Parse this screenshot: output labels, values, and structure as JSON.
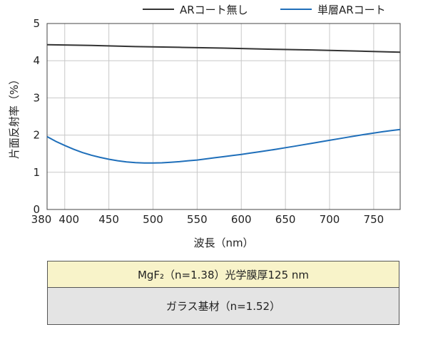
{
  "chart_data": {
    "type": "line",
    "xlabel": "波長（nm）",
    "ylabel": "片面反射率（%）",
    "xlim": [
      380,
      780
    ],
    "ylim": [
      0,
      5
    ],
    "x_ticks": [
      {
        "value": 380,
        "label": "380"
      },
      {
        "value": 400,
        "label": "400"
      },
      {
        "value": 450,
        "label": "450"
      },
      {
        "value": 500,
        "label": "500"
      },
      {
        "value": 550,
        "label": "550"
      },
      {
        "value": 600,
        "label": "600"
      },
      {
        "value": 650,
        "label": "650"
      },
      {
        "value": 700,
        "label": "700"
      },
      {
        "value": 750,
        "label": "750"
      }
    ],
    "y_ticks": [
      0,
      1,
      2,
      3,
      4,
      5
    ],
    "grid": true,
    "legend_position": "top",
    "series": [
      {
        "name": "ARコート無し",
        "color": "#333333",
        "x": [
          380,
          430,
          480,
          530,
          580,
          630,
          680,
          730,
          780
        ],
        "y": [
          4.43,
          4.41,
          4.38,
          4.36,
          4.34,
          4.31,
          4.29,
          4.26,
          4.23
        ]
      },
      {
        "name": "単層ARコート",
        "color": "#1f6fba",
        "x": [
          380,
          390,
          400,
          410,
          420,
          430,
          440,
          450,
          460,
          470,
          480,
          490,
          500,
          510,
          520,
          530,
          540,
          550,
          560,
          570,
          580,
          590,
          600,
          610,
          620,
          630,
          640,
          650,
          660,
          670,
          680,
          690,
          700,
          710,
          720,
          730,
          740,
          750,
          760,
          770,
          780
        ],
        "y": [
          1.96,
          1.83,
          1.72,
          1.62,
          1.53,
          1.46,
          1.4,
          1.35,
          1.31,
          1.28,
          1.26,
          1.25,
          1.25,
          1.255,
          1.27,
          1.285,
          1.31,
          1.33,
          1.36,
          1.39,
          1.42,
          1.45,
          1.48,
          1.515,
          1.55,
          1.585,
          1.62,
          1.66,
          1.7,
          1.74,
          1.78,
          1.82,
          1.86,
          1.9,
          1.94,
          1.98,
          2.02,
          2.055,
          2.09,
          2.12,
          2.15
        ]
      }
    ]
  },
  "layers": {
    "coating": "MgF₂（n=1.38）光学膜厚125 nm",
    "substrate": "ガラス基材（n=1.52）"
  }
}
